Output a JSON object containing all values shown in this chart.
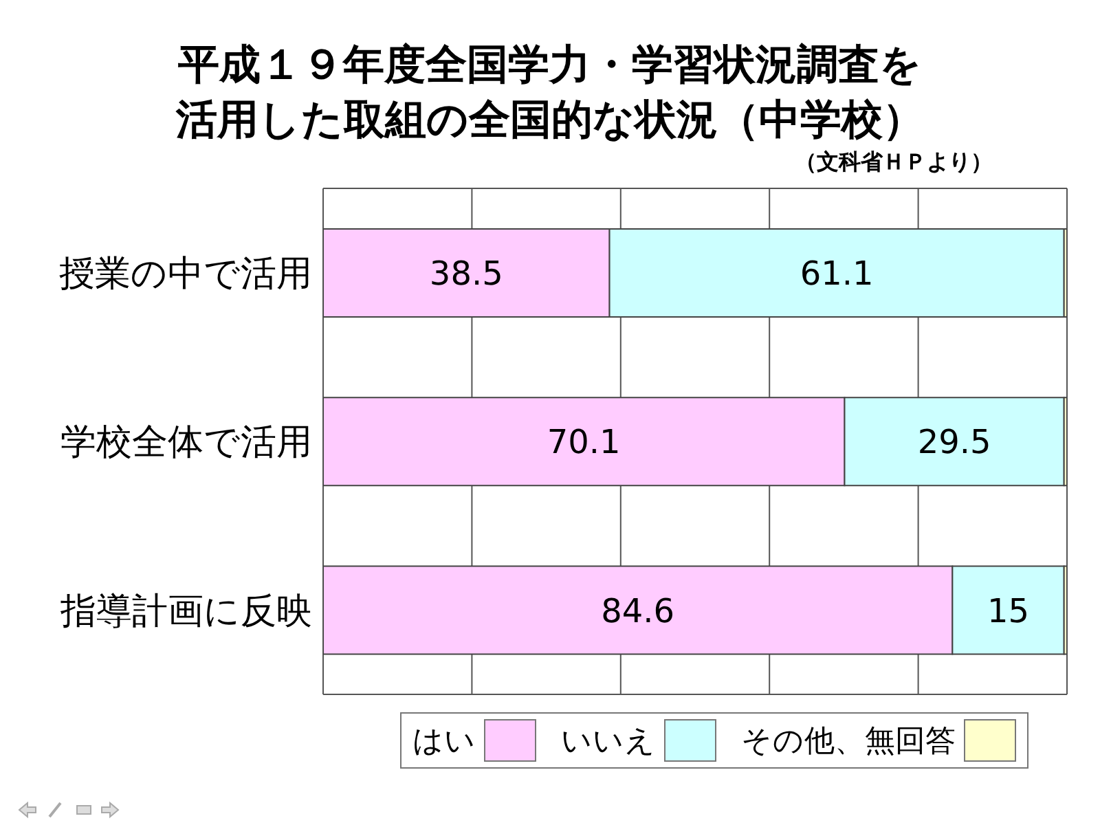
{
  "chart_data": {
    "type": "bar",
    "orientation": "horizontal",
    "stacked": true,
    "title": "平成１９年度全国学力・学習状況調査を活用した取組の全国的な状況（中学校）",
    "annotations": [
      "（文科省ＨＰより）"
    ],
    "categories": [
      "授業の中で活用",
      "学校全体で活用",
      "指導計画に反映"
    ],
    "series": [
      {
        "name": "はい",
        "color": "#ffccff",
        "values": [
          38.5,
          70.1,
          84.6
        ],
        "value_labels": [
          "38.5",
          "70.1",
          "84.6"
        ]
      },
      {
        "name": "いいえ",
        "color": "#ccffff",
        "values": [
          61.1,
          29.5,
          15
        ],
        "value_labels": [
          "61.1",
          "29.5",
          "15"
        ]
      },
      {
        "name": "その他、無回答",
        "color": "#ffffcc",
        "values": [
          0.4,
          0.4,
          0.4
        ]
      }
    ],
    "xlim": [
      0,
      100
    ],
    "tick_labels": "y",
    "grid": "x",
    "legend": "bottom right"
  }
}
